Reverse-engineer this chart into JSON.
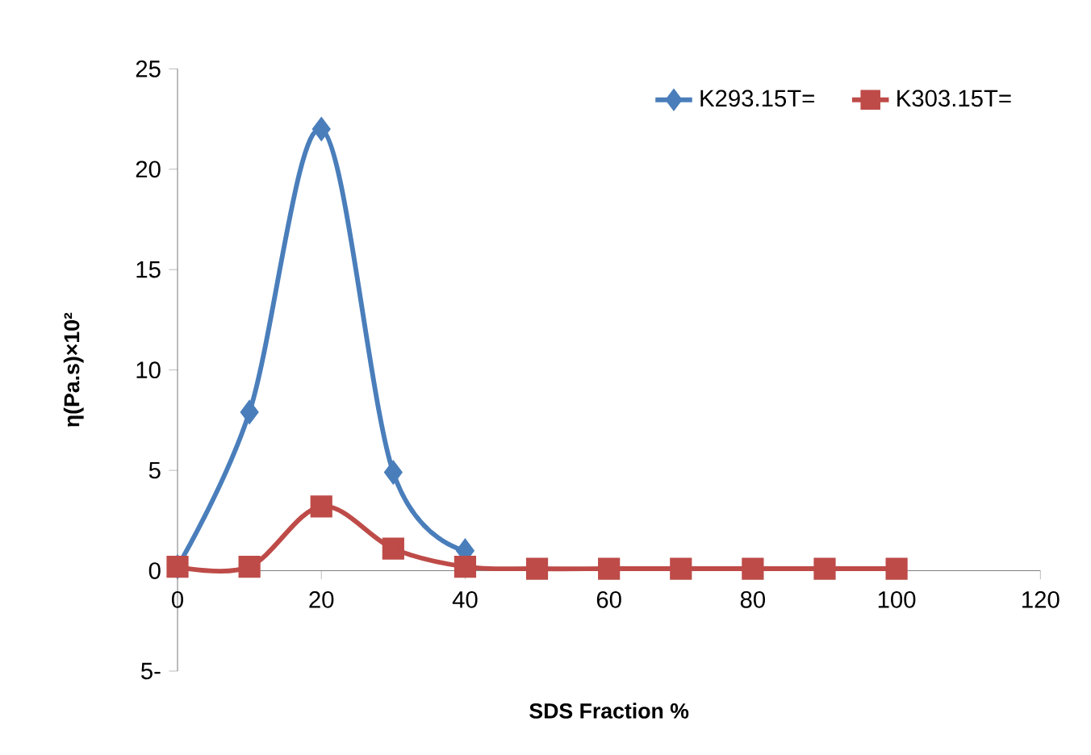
{
  "chart_data": {
    "type": "line",
    "xlabel": "SDS Fraction %",
    "ylabel": "η(Pa.s)×10²",
    "x": [
      0,
      10,
      20,
      30,
      40,
      50,
      60,
      70,
      80,
      90,
      100
    ],
    "series": [
      {
        "name": "K293.15T=",
        "color": "#4a7ebb",
        "marker": "diamond",
        "values": [
          0.2,
          7.9,
          22,
          4.9,
          1.0,
          null,
          null,
          null,
          null,
          null,
          null
        ]
      },
      {
        "name": "K303.15T=",
        "color": "#be4b48",
        "marker": "square",
        "values": [
          0.2,
          0.2,
          3.2,
          1.1,
          0.2,
          0.1,
          0.1,
          0.1,
          0.1,
          0.1,
          0.1
        ]
      }
    ],
    "xlim": [
      0,
      120
    ],
    "ylim": [
      -5,
      25
    ],
    "xticks": [
      0,
      20,
      40,
      60,
      80,
      100,
      120
    ],
    "yticks": [
      {
        "value": -5,
        "label": "5-"
      },
      0,
      5,
      10,
      15,
      20,
      25
    ],
    "legend": "top right"
  }
}
